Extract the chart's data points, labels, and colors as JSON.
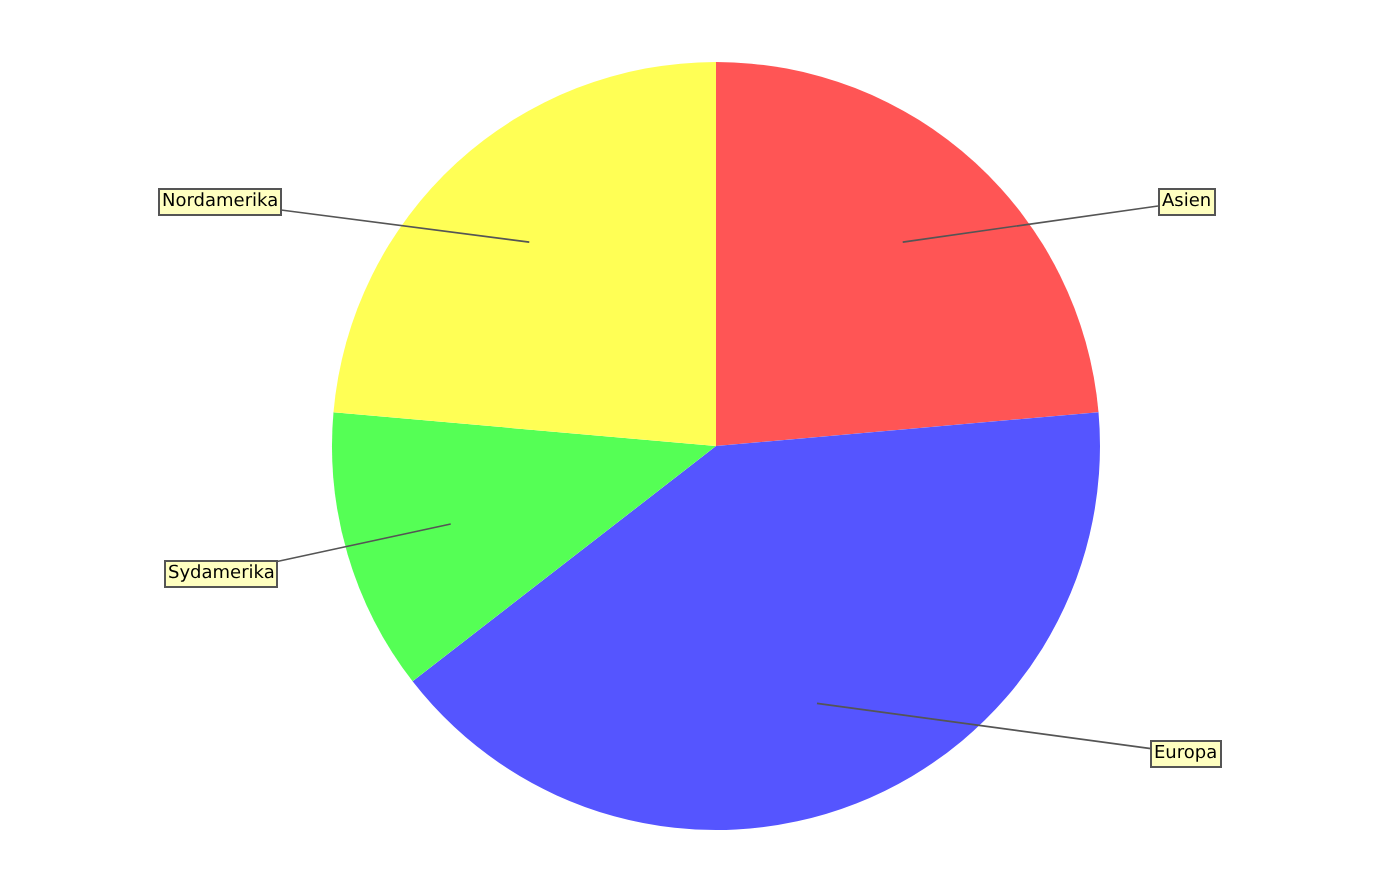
{
  "chart_data": {
    "type": "pie",
    "legend": false,
    "categories": [
      "Asien",
      "Europa",
      "Sydamerika",
      "Nordamerika"
    ],
    "values": [
      23.6,
      40.9,
      11.9,
      23.6
    ],
    "colors": [
      "#ff5555",
      "#5555ff",
      "#55ff55",
      "#ffff55"
    ]
  }
}
